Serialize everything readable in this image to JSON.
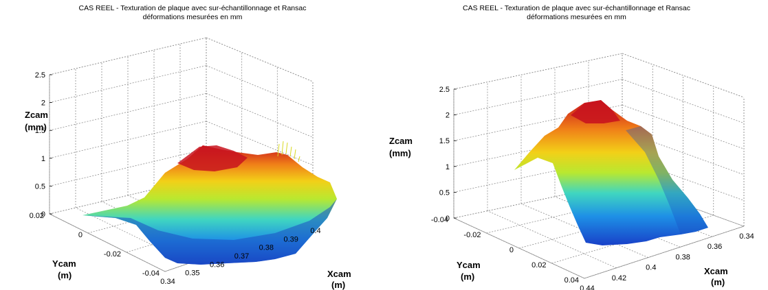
{
  "chart_data": [
    {
      "type": "surface",
      "title": "CAS REEL - Texturation de plaque avec sur-échantillonnage et Ransac",
      "subtitle": "déformations mesurées en mm",
      "xlabel": "Xcam",
      "xunit": "(m)",
      "ylabel": "Ycam",
      "yunit": "(m)",
      "zlabel": "Zcam",
      "zunit": "(mm)",
      "xlim": [
        0.34,
        0.4
      ],
      "ylim": [
        -0.04,
        0.03
      ],
      "zlim": [
        0,
        2.5
      ],
      "x_ticks": [
        "0.34",
        "0.35",
        "0.36",
        "0.37",
        "0.38",
        "0.39",
        "0.4"
      ],
      "y_ticks": [
        "-0.04",
        "-0.02",
        "0",
        "0.02"
      ],
      "z_ticks": [
        "0",
        "0.5",
        "1",
        "1.5",
        "2",
        "2.5"
      ],
      "colormap": "jet",
      "grid": true,
      "peak_z": 1.2
    },
    {
      "type": "surface",
      "title": "CAS REEL - Texturation de plaque avec sur-échantillonnage et Ransac",
      "subtitle": "déformations mesurées en mm",
      "xlabel": "Xcam",
      "xunit": "(m)",
      "ylabel": "Ycam",
      "yunit": "(m)",
      "zlabel": "Zcam",
      "zunit": "(mm)",
      "xlim": [
        0.34,
        0.44
      ],
      "ylim": [
        -0.04,
        0.04
      ],
      "zlim": [
        0,
        2.5
      ],
      "x_ticks": [
        "0.34",
        "0.36",
        "0.38",
        "0.4",
        "0.42",
        "0.44"
      ],
      "y_ticks": [
        "-0.04",
        "-0.02",
        "0",
        "0.02",
        "0.04"
      ],
      "z_ticks": [
        "0",
        "0.5",
        "1",
        "1.5",
        "2",
        "2.5"
      ],
      "colormap": "jet",
      "grid": true,
      "peak_z": 2.3
    }
  ],
  "colors": {
    "jet_low": "#1f4fc7",
    "jet_mid": "#e8e81a",
    "jet_high": "#c8141e",
    "grid": "#8c8c8c"
  }
}
